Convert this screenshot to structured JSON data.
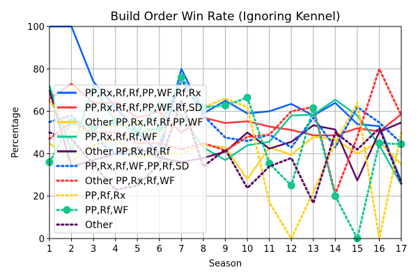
{
  "chart_data": {
    "type": "line",
    "title": "Build Order Win Rate (Ignoring Kennel)",
    "xlabel": "Season",
    "ylabel": "Percentage",
    "xlim": [
      1,
      17
    ],
    "ylim": [
      0,
      100
    ],
    "x": [
      1,
      2,
      3,
      4,
      5,
      6,
      7,
      8,
      9,
      10,
      11,
      12,
      13,
      14,
      15,
      16,
      17
    ],
    "xticks": [
      "1",
      "2",
      "3",
      "4",
      "5",
      "6",
      "7",
      "8",
      "9",
      "10",
      "11",
      "12",
      "13",
      "14",
      "15",
      "16",
      "17"
    ],
    "yticks": [
      "0",
      "20",
      "40",
      "60",
      "80",
      "100"
    ],
    "grid": true,
    "legend_position": "lower-left",
    "series": [
      {
        "name": "PP,Rx,Rf,Rf,PP,WF,Rf,Rx",
        "color": "#0a60ff",
        "style": "solid",
        "marker": false,
        "values": [
          100,
          100,
          74,
          62,
          50,
          40,
          80,
          59,
          65,
          59,
          60,
          63.5,
          58,
          64,
          54,
          53,
          27
        ]
      },
      {
        "name": "PP,Rx,Rf,Rf,PP,WF,Rf,SD",
        "color": "#ff3333",
        "style": "solid",
        "marker": false,
        "values": [
          66,
          73,
          64,
          64,
          57,
          60,
          50,
          57,
          54.5,
          55.3,
          52.8,
          51.2,
          48.7,
          48.7,
          52,
          50.5,
          58.6
        ]
      },
      {
        "name": "Other PP,Rx,Rf,Rf,PP,WF",
        "color": "#ffd21f",
        "style": "solid",
        "marker": false,
        "values": [
          45,
          36.5,
          44,
          47,
          38,
          40,
          40,
          44,
          43,
          28,
          43,
          39.5,
          48,
          46.8,
          40,
          45.7,
          35
        ]
      },
      {
        "name": "PP,Rx,Rf,Rf,WF",
        "color": "#10c890",
        "style": "solid",
        "marker": false,
        "values": [
          72,
          41,
          72,
          55,
          50,
          64,
          58,
          43,
          37,
          44,
          45.6,
          58,
          58.4,
          65.5,
          58,
          44,
          25.5
        ]
      },
      {
        "name": "Other PP,Rx,Rf,Rf",
        "color": "#5c0a60",
        "style": "solid",
        "marker": false,
        "values": [
          70,
          34,
          37,
          40,
          43,
          38,
          36,
          38,
          41,
          50,
          42.4,
          45.6,
          53.4,
          51.4,
          27.4,
          50.3,
          54.7
        ]
      },
      {
        "name": "PP,Rx,Rf,WF,PP,Rf,SD",
        "color": "#0a60ff",
        "style": "dotted",
        "marker": false,
        "values": [
          55,
          58,
          48,
          40,
          40,
          44,
          75,
          58,
          47.6,
          46,
          49,
          43,
          57,
          43,
          62,
          54.7,
          45
        ]
      },
      {
        "name": "Other PP,Rx,Rf,WF",
        "color": "#ff3333",
        "style": "dotted",
        "marker": false,
        "values": [
          47,
          55,
          50,
          50,
          45,
          45,
          42,
          45,
          41.5,
          48,
          49,
          60,
          62,
          21,
          48,
          80,
          58
        ]
      },
      {
        "name": "PP,Rf,Rx",
        "color": "#ffd21f",
        "style": "dotted",
        "marker": false,
        "values": [
          65,
          50,
          52,
          53,
          55,
          48,
          60,
          62,
          66,
          62,
          17,
          0,
          22,
          45,
          64,
          0,
          50
        ]
      },
      {
        "name": "PP,Rf,WF",
        "color": "#10c890",
        "style": "dotted",
        "marker": true,
        "values": [
          36,
          55,
          52,
          55,
          50,
          52,
          76,
          62,
          62.7,
          66.5,
          35.4,
          25,
          61.5,
          20,
          0,
          45,
          44.5
        ]
      },
      {
        "name": "Other",
        "color": "#5c0a60",
        "style": "dotted",
        "marker": false,
        "values": [
          50,
          47,
          35,
          23,
          25,
          35,
          65,
          34,
          42,
          23.8,
          34,
          38,
          16.7,
          50,
          42,
          52,
          26
        ]
      }
    ]
  }
}
